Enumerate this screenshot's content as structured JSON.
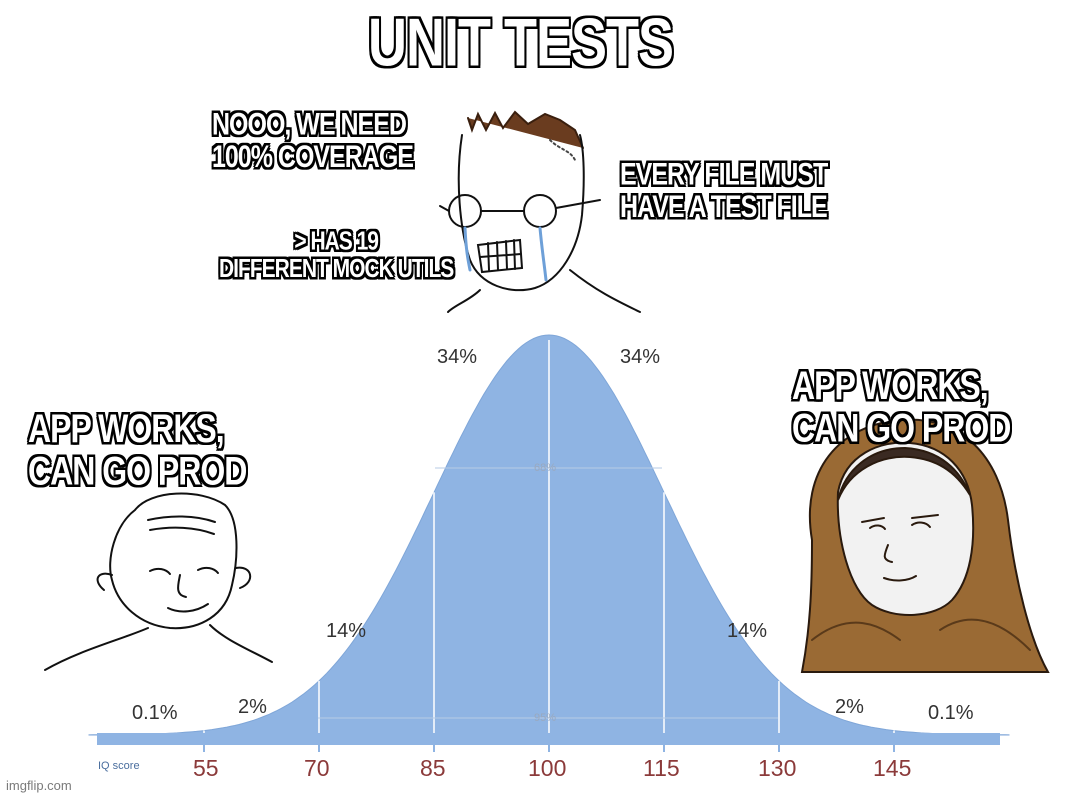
{
  "title": "UNIT TESTS",
  "captions": {
    "middle_1": [
      "NOOO, WE NEED",
      "100% COVERAGE"
    ],
    "middle_2": [
      "EVERY FILE MUST",
      "HAVE A TEST FILE"
    ],
    "middle_3": [
      "> HAS 19",
      "DIFFERENT MOCK UTILS"
    ],
    "left": [
      "APP WORKS,",
      "CAN GO PROD"
    ],
    "right": [
      "APP WORKS,",
      "CAN GO PROD"
    ]
  },
  "chart_data": {
    "type": "area",
    "x_label": "IQ score",
    "x_ticks": [
      "55",
      "70",
      "85",
      "100",
      "115",
      "130",
      "145"
    ],
    "mean": 100,
    "std": 15,
    "region_labels": [
      "0.1%",
      "2%",
      "14%",
      "34%",
      "34%",
      "14%",
      "2%",
      "0.1%"
    ],
    "inner_labels": [
      "68%",
      "95%"
    ],
    "fill_color": "#8fb4e3"
  },
  "watermark": "imgflip.com"
}
